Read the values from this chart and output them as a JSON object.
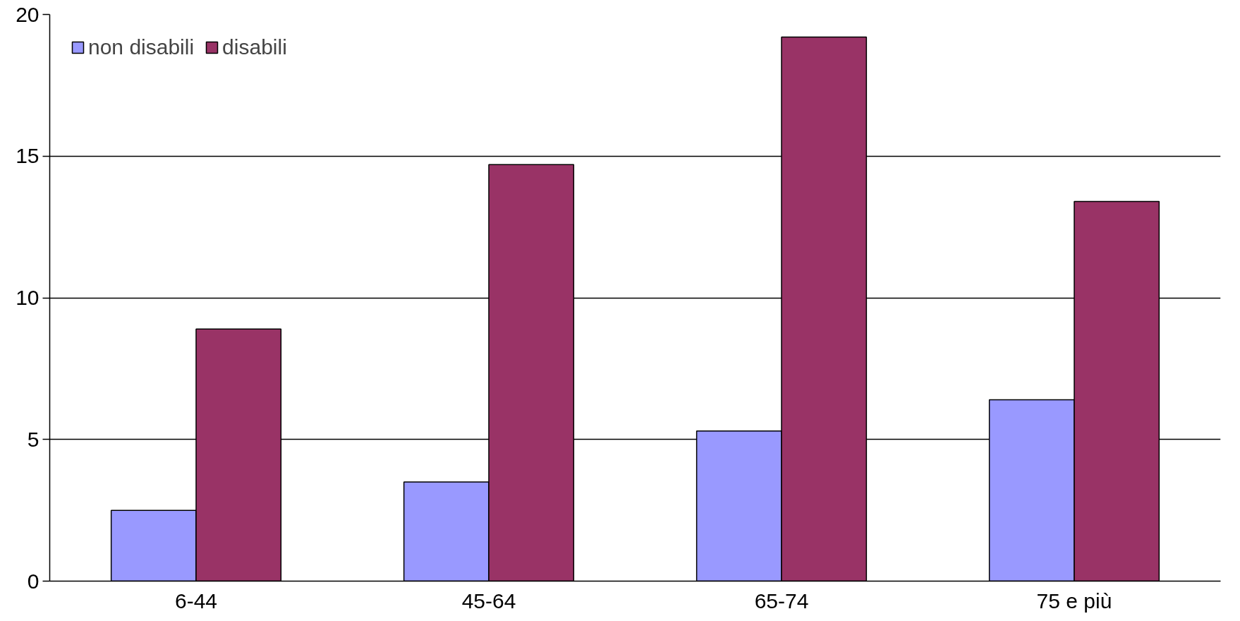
{
  "chart_data": {
    "type": "bar",
    "categories": [
      "6-44",
      "45-64",
      "65-74",
      "75 e più"
    ],
    "series": [
      {
        "name": "non disabili",
        "color": "#9999ff",
        "values": [
          2.5,
          3.5,
          5.3,
          6.4
        ]
      },
      {
        "name": "disabili",
        "color": "#993366",
        "values": [
          8.9,
          14.7,
          19.2,
          13.4
        ]
      }
    ],
    "ylim": [
      0,
      20
    ],
    "yticks": [
      0,
      5,
      10,
      15,
      20
    ],
    "grid": "y",
    "legend": "top left"
  }
}
